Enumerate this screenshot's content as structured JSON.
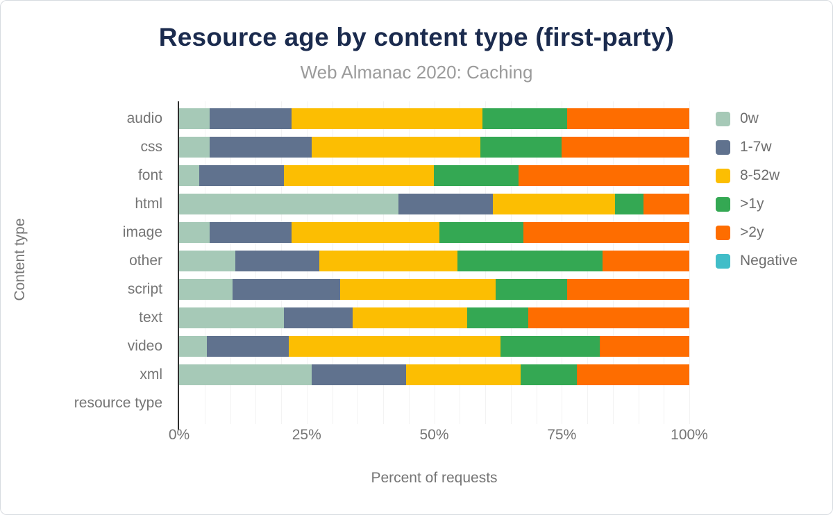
{
  "chart_data": {
    "type": "bar",
    "stacked": true,
    "orientation": "horizontal",
    "title": "Resource age by content type (first-party)",
    "subtitle": "Web Almanac 2020: Caching",
    "xlabel": "Percent of requests",
    "ylabel": "Content type",
    "xlim": [
      0,
      100
    ],
    "grid": "vertical-minor",
    "grid_step": 5,
    "legend_position": "right",
    "x_ticks": [
      "0%",
      "25%",
      "50%",
      "75%",
      "100%"
    ],
    "x_tick_values": [
      0,
      25,
      50,
      75,
      100
    ],
    "categories": [
      "audio",
      "css",
      "font",
      "html",
      "image",
      "other",
      "script",
      "text",
      "video",
      "xml",
      "resource type"
    ],
    "series": [
      {
        "name": "0w",
        "color": "#a6c9b7",
        "values": [
          6,
          6,
          4,
          43,
          6,
          11,
          10.5,
          20.5,
          5.5,
          26,
          0
        ]
      },
      {
        "name": "1-7w",
        "color": "#60728e",
        "values": [
          16,
          20,
          16.5,
          18.5,
          16,
          16.5,
          21,
          13.5,
          16,
          18.5,
          0
        ]
      },
      {
        "name": "8-52w",
        "color": "#fcbe02",
        "values": [
          37.5,
          33,
          29.5,
          24,
          29,
          27,
          30.5,
          22.5,
          41.5,
          22.5,
          0
        ]
      },
      {
        "name": ">1y",
        "color": "#34a853",
        "values": [
          16.5,
          16,
          16.5,
          5.5,
          16.5,
          28.5,
          14,
          12,
          19.5,
          11,
          0
        ]
      },
      {
        "name": ">2y",
        "color": "#fe6d00",
        "values": [
          24,
          25,
          33.5,
          9,
          32.5,
          17,
          24,
          31.5,
          17.5,
          22,
          0
        ]
      },
      {
        "name": "Negative",
        "color": "#41bdc8",
        "values": [
          0,
          0,
          0,
          0,
          0,
          0,
          0,
          0,
          0,
          0,
          0
        ]
      }
    ],
    "colors": {
      "title": "#1b2b4e",
      "subtitle": "#9b9b9b",
      "axis_labels": "#757575",
      "axis_line": "#2f2f2f",
      "gridline": "#f3f3f3"
    }
  }
}
